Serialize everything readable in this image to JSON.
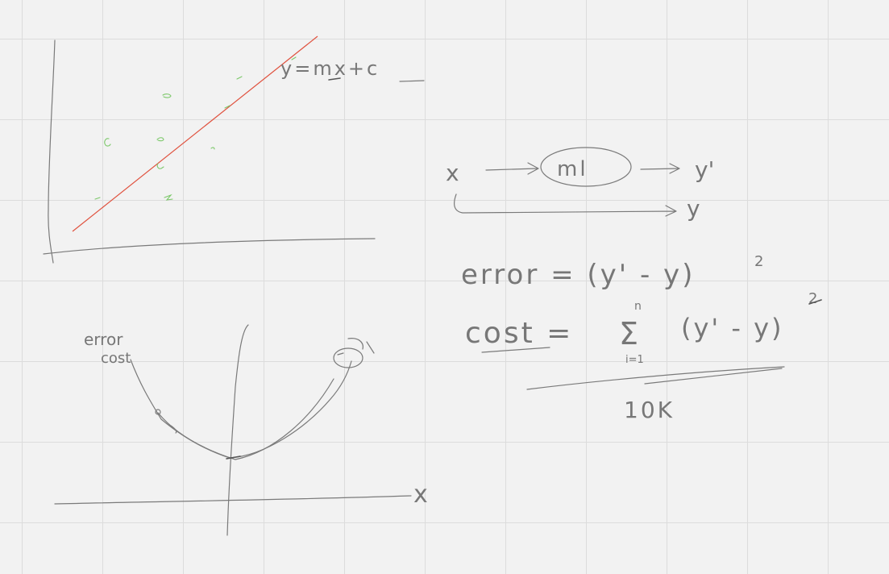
{
  "regression_plot": {
    "equation": "y=mx+c"
  },
  "pipeline": {
    "input_label": "x",
    "model_label": "ml",
    "prediction_label": "y'",
    "target_label": "y"
  },
  "formulas": {
    "error_text": "error = (y' - y)",
    "error_exponent": "2",
    "cost_label": "cost =",
    "sum_upper": "n",
    "sum_symbol": "Σ",
    "sum_lower": "i=1",
    "cost_term": "(y' - y)",
    "cost_exponent": "2",
    "denominator": "10K"
  },
  "error_curve": {
    "ylabel_line1": "error",
    "ylabel_line2": "cost",
    "xlabel": "x"
  }
}
